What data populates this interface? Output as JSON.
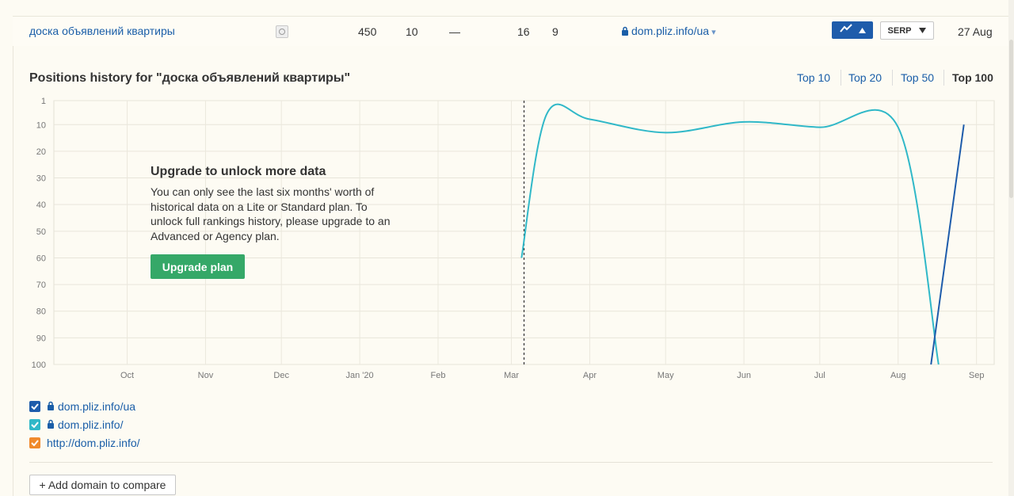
{
  "row": {
    "keyword": "доска объявлений квартиры",
    "serp_icon": "serp-snapshot-icon",
    "volume": "450",
    "kd": "10",
    "cpc": "—",
    "col4": "16",
    "col5": "9",
    "url": "dom.pliz.info/ua",
    "url_caret": "▾",
    "serp_label": "SERP",
    "date": "27 Aug"
  },
  "panel": {
    "title": "Positions history for \"доска объявлений квартиры\"",
    "top_filters": [
      "Top 10",
      "Top 20",
      "Top 50",
      "Top 100"
    ],
    "active_filter": "Top 100"
  },
  "upgrade": {
    "title": "Upgrade to unlock more data",
    "text": "You can only see the last six months' worth of historical data on a Lite or Standard plan. To unlock full rankings history, please upgrade to an Advanced or Agency plan.",
    "button": "Upgrade plan"
  },
  "legend": [
    {
      "label": "dom.pliz.info/ua",
      "color": "#1e5cab",
      "locked": true
    },
    {
      "label": "dom.pliz.info/",
      "color": "#30b8c8",
      "locked": true
    },
    {
      "label": "http://dom.pliz.info/",
      "color": "#f08a2c",
      "locked": false
    }
  ],
  "add_domain": "+ Add domain to compare",
  "chart_data": {
    "type": "line",
    "y_ticks": [
      "1",
      "10",
      "20",
      "30",
      "40",
      "50",
      "60",
      "70",
      "80",
      "90",
      "100"
    ],
    "x_ticks": [
      "Oct",
      "Nov",
      "Dec",
      "Jan '20",
      "Feb",
      "Mar",
      "Apr",
      "May",
      "Jun",
      "Jul",
      "Aug",
      "Sep"
    ],
    "ylim": [
      1,
      100
    ],
    "y_inverted": true,
    "grid": true,
    "series": [
      {
        "name": "dom.pliz.info/",
        "color": "#30b8c8",
        "points": [
          {
            "x": "2020-03-05",
            "y": 60
          },
          {
            "x": "2020-03-15",
            "y": 6
          },
          {
            "x": "2020-04-01",
            "y": 8
          },
          {
            "x": "2020-05-01",
            "y": 13
          },
          {
            "x": "2020-06-01",
            "y": 9
          },
          {
            "x": "2020-07-01",
            "y": 11
          },
          {
            "x": "2020-08-01",
            "y": 11
          },
          {
            "x": "2020-08-17",
            "y": 100
          }
        ]
      },
      {
        "name": "dom.pliz.info/ua",
        "color": "#1e5cab",
        "points": [
          {
            "x": "2020-08-14",
            "y": 100
          },
          {
            "x": "2020-08-27",
            "y": 10
          }
        ]
      }
    ]
  }
}
